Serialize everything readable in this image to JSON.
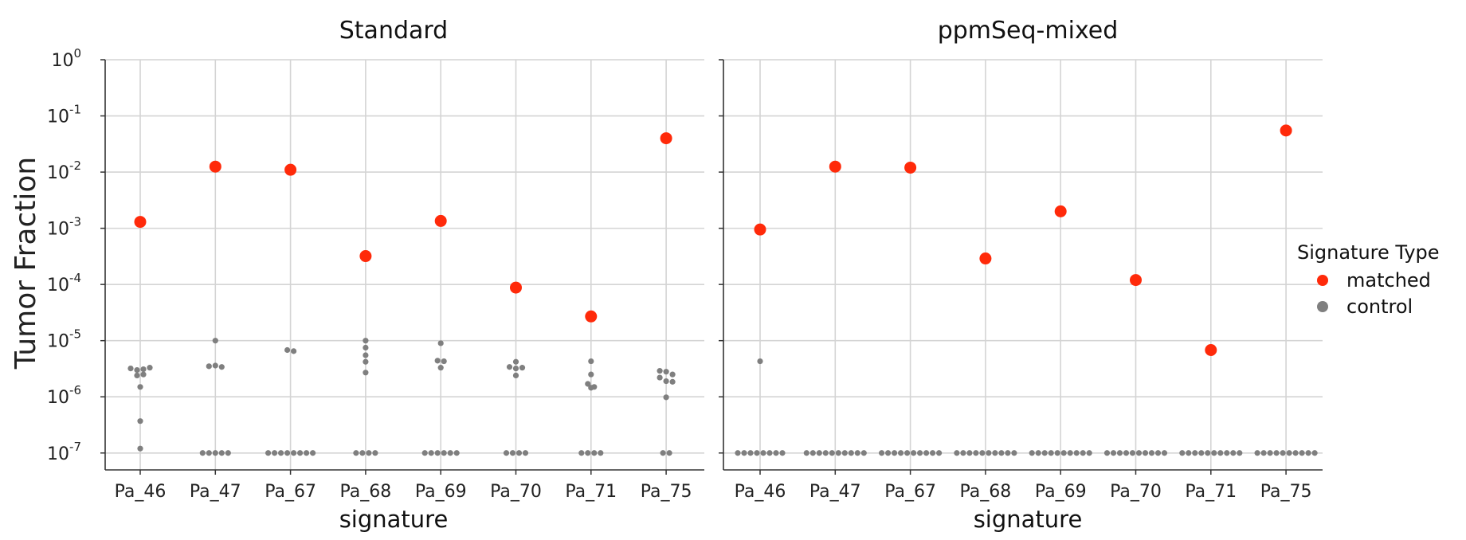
{
  "chart_data": {
    "type": "scatter",
    "ylabel": "Tumor Fraction",
    "yscale": "log",
    "ylim": [
      5e-08,
      1
    ],
    "y_ticks": [
      {
        "value": 1,
        "base": "10",
        "exp": "0"
      },
      {
        "value": 0.1,
        "base": "10",
        "exp": "-1"
      },
      {
        "value": 0.01,
        "base": "10",
        "exp": "-2"
      },
      {
        "value": 0.001,
        "base": "10",
        "exp": "-3"
      },
      {
        "value": 0.0001,
        "base": "10",
        "exp": "-4"
      },
      {
        "value": 1e-05,
        "base": "10",
        "exp": "-5"
      },
      {
        "value": 1e-06,
        "base": "10",
        "exp": "-6"
      },
      {
        "value": 1e-07,
        "base": "10",
        "exp": "-7"
      }
    ],
    "grid": true,
    "categories": [
      "Pa_46",
      "Pa_47",
      "Pa_67",
      "Pa_68",
      "Pa_69",
      "Pa_70",
      "Pa_71",
      "Pa_75"
    ],
    "legend": {
      "title": "Signature Type",
      "position": "right",
      "entries": [
        {
          "label": "matched",
          "color": "#ff2a0a"
        },
        {
          "label": "control",
          "color": "#7f7f7f"
        }
      ]
    },
    "panels": [
      {
        "title": "Standard",
        "xlabel": "signature",
        "matched": [
          0.0013,
          0.0125,
          0.011,
          0.00032,
          0.00135,
          8.8e-05,
          2.7e-05,
          0.04
        ],
        "control": [
          [
            3.2e-06,
            3e-06,
            2.4e-06,
            3.1e-06,
            2.5e-06,
            3.3e-06,
            1.5e-06,
            3.7e-07,
            1.2e-07
          ],
          [
            1e-05,
            3.5e-06,
            3.6e-06,
            3.4e-06,
            1e-07,
            1e-07,
            1e-07,
            1e-07,
            1e-07
          ],
          [
            6.8e-06,
            6.5e-06,
            1e-07,
            1e-07,
            1e-07,
            1e-07,
            1e-07,
            1e-07,
            1e-07,
            1e-07
          ],
          [
            1e-05,
            7.5e-06,
            5.5e-06,
            4.2e-06,
            2.7e-06,
            1e-07,
            1e-07,
            1e-07,
            1e-07
          ],
          [
            9e-06,
            4.4e-06,
            4.3e-06,
            3.3e-06,
            1e-07,
            1e-07,
            1e-07,
            1e-07,
            1e-07,
            1e-07
          ],
          [
            4.2e-06,
            3.4e-06,
            3.2e-06,
            3.3e-06,
            2.4e-06,
            1e-07,
            1e-07,
            1e-07,
            1e-07
          ],
          [
            4.3e-06,
            2.5e-06,
            1.7e-06,
            1.5e-06,
            1.45e-06,
            1e-07,
            1e-07,
            1e-07,
            1e-07
          ],
          [
            2.9e-06,
            2.8e-06,
            2.5e-06,
            2.2e-06,
            1.9e-06,
            1.85e-06,
            9.8e-07,
            1e-07,
            1e-07
          ]
        ]
      },
      {
        "title": "ppmSeq-mixed",
        "xlabel": "signature",
        "matched": [
          0.00095,
          0.0125,
          0.012,
          0.00029,
          0.002,
          0.00012,
          6.8e-06,
          0.055
        ],
        "control": [
          [
            4.3e-06,
            1e-07,
            1e-07,
            1e-07,
            1e-07,
            1e-07,
            1e-07,
            1e-07,
            1e-07
          ],
          [
            1e-07,
            1e-07,
            1e-07,
            1e-07,
            1e-07,
            1e-07,
            1e-07,
            1e-07,
            1e-07,
            1e-07
          ],
          [
            1e-07,
            1e-07,
            1e-07,
            1e-07,
            1e-07,
            1e-07,
            1e-07,
            1e-07,
            1e-07,
            1e-07
          ],
          [
            1e-07,
            1e-07,
            1e-07,
            1e-07,
            1e-07,
            1e-07,
            1e-07,
            1e-07,
            1e-07,
            1e-07
          ],
          [
            1e-07,
            1e-07,
            1e-07,
            1e-07,
            1e-07,
            1e-07,
            1e-07,
            1e-07,
            1e-07,
            1e-07
          ],
          [
            1e-07,
            1e-07,
            1e-07,
            1e-07,
            1e-07,
            1e-07,
            1e-07,
            1e-07,
            1e-07,
            1e-07
          ],
          [
            1e-07,
            1e-07,
            1e-07,
            1e-07,
            1e-07,
            1e-07,
            1e-07,
            1e-07,
            1e-07,
            1e-07
          ],
          [
            1e-07,
            1e-07,
            1e-07,
            1e-07,
            1e-07,
            1e-07,
            1e-07,
            1e-07,
            1e-07,
            1e-07
          ]
        ]
      }
    ]
  }
}
